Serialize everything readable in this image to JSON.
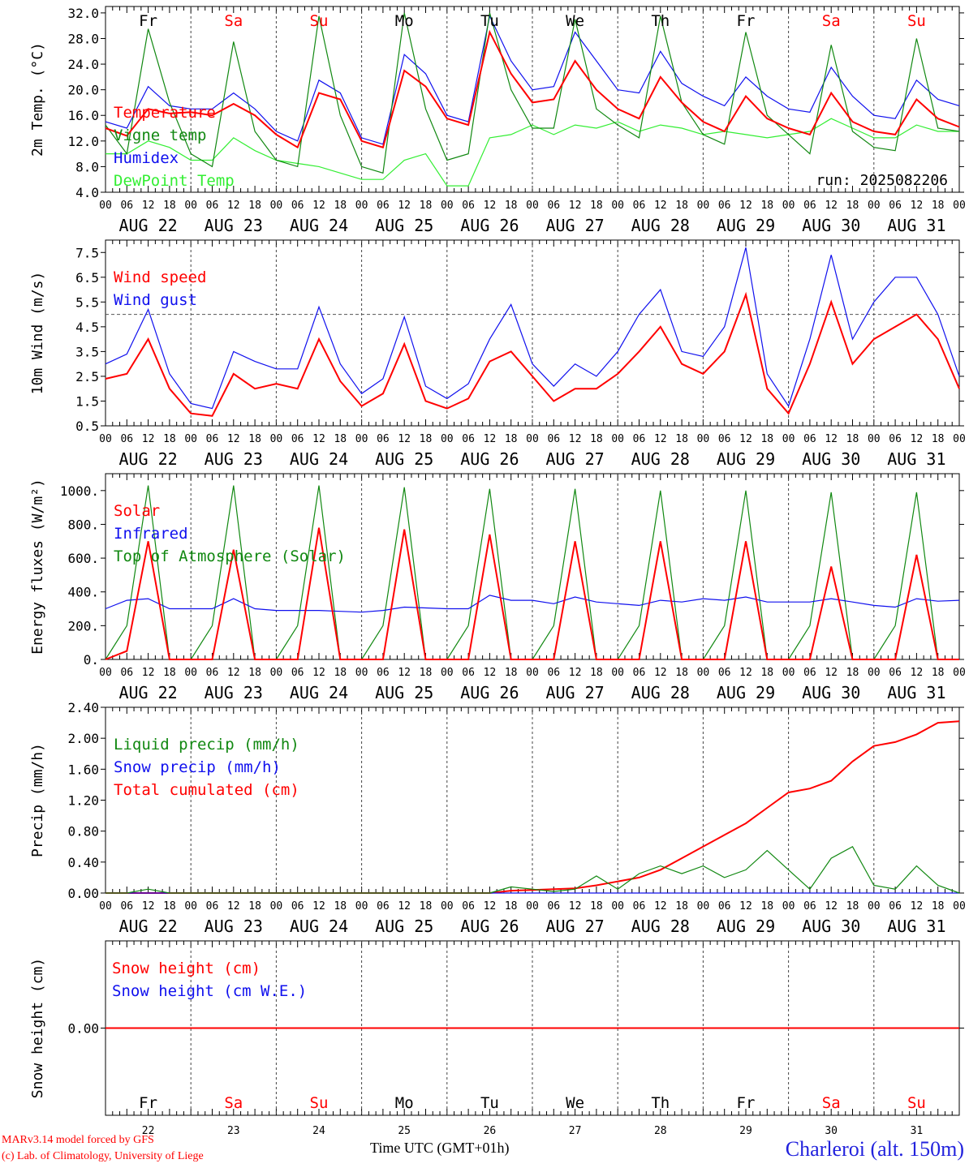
{
  "days": [
    {
      "dow": "Fr",
      "weekend": false,
      "date": "AUG 22",
      "daynum": "22"
    },
    {
      "dow": "Sa",
      "weekend": true,
      "date": "AUG 23",
      "daynum": "23"
    },
    {
      "dow": "Su",
      "weekend": true,
      "date": "AUG 24",
      "daynum": "24"
    },
    {
      "dow": "Mo",
      "weekend": false,
      "date": "AUG 25",
      "daynum": "25"
    },
    {
      "dow": "Tu",
      "weekend": false,
      "date": "AUG 26",
      "daynum": "26"
    },
    {
      "dow": "We",
      "weekend": false,
      "date": "AUG 27",
      "daynum": "27"
    },
    {
      "dow": "Th",
      "weekend": false,
      "date": "AUG 28",
      "daynum": "28"
    },
    {
      "dow": "Fr",
      "weekend": false,
      "date": "AUG 29",
      "daynum": "29"
    },
    {
      "dow": "Sa",
      "weekend": true,
      "date": "AUG 30",
      "daynum": "30"
    },
    {
      "dow": "Su",
      "weekend": true,
      "date": "AUG 31",
      "daynum": "31"
    }
  ],
  "hour_ticks": [
    "00",
    "06",
    "12",
    "18"
  ],
  "colors": {
    "red": "#ff0000",
    "green": "#118811",
    "blue": "#1010ee",
    "lightgreen": "#33ee33",
    "weekend": "#ff0000",
    "weekday": "#000000"
  },
  "footer": {
    "credit_line1": "MARv3.14 model forced by GFS",
    "credit_line2": "(c) Lab. of Climatology, University of Liege",
    "time_label": "Time UTC (GMT+01h)",
    "station": "Charleroi (alt. 150m)"
  },
  "chart_data": [
    {
      "type": "line",
      "ylabel": "2m Temp. (°C)",
      "ylim": [
        4.0,
        33.0
      ],
      "yticks": [
        "4.0",
        "8.0",
        "12.0",
        "16.0",
        "20.0",
        "24.0",
        "28.0",
        "32.0"
      ],
      "ytick_values": [
        4,
        8,
        12,
        16,
        20,
        24,
        28,
        32
      ],
      "annotation": "run: 2025082206",
      "x_hours": [
        0,
        6,
        12,
        18,
        24,
        30,
        36,
        42,
        48,
        54,
        60,
        66,
        72,
        78,
        84,
        90,
        96,
        102,
        108,
        114,
        120,
        126,
        132,
        138,
        144,
        150,
        156,
        162,
        168,
        174,
        180,
        186,
        192,
        198,
        204,
        210,
        216,
        222,
        228,
        234,
        240
      ],
      "series": [
        {
          "name": "Temperature",
          "color": "red",
          "values": [
            14.0,
            12.8,
            17.0,
            16.3,
            16.5,
            16.0,
            17.8,
            16.0,
            13.0,
            11.0,
            19.5,
            18.5,
            12.0,
            11.0,
            23.0,
            20.5,
            15.5,
            14.5,
            29.0,
            22.5,
            18.0,
            18.5,
            24.5,
            20.0,
            17.0,
            15.5,
            22.0,
            18.0,
            15.0,
            13.5,
            19.0,
            15.5,
            14.0,
            13.0,
            19.5,
            15.0,
            13.5,
            13.0,
            18.5,
            15.5,
            14.2
          ]
        },
        {
          "name": "Vigne temp",
          "color": "green",
          "values": [
            14.5,
            10.0,
            29.5,
            18.0,
            10.0,
            8.0,
            27.5,
            13.5,
            9.0,
            8.0,
            31.5,
            16.0,
            8.0,
            7.0,
            32.0,
            17.0,
            9.0,
            10.0,
            32.0,
            20.0,
            14.0,
            14.0,
            31.0,
            17.0,
            14.5,
            12.5,
            31.5,
            18.0,
            13.0,
            11.5,
            29.0,
            16.0,
            13.0,
            10.0,
            27.0,
            13.5,
            11.0,
            10.5,
            28.0,
            14.0,
            13.5
          ]
        },
        {
          "name": "Humidex",
          "color": "blue",
          "values": [
            15.0,
            14.0,
            20.5,
            17.5,
            17.0,
            17.0,
            19.5,
            17.0,
            13.5,
            12.0,
            21.5,
            19.5,
            12.5,
            11.5,
            25.5,
            22.5,
            16.0,
            15.0,
            31.5,
            24.5,
            20.0,
            20.5,
            29.0,
            24.5,
            20.0,
            19.5,
            26.0,
            21.0,
            19.0,
            17.5,
            22.0,
            19.0,
            17.0,
            16.5,
            23.5,
            19.0,
            16.0,
            15.5,
            21.5,
            18.5,
            17.5
          ]
        },
        {
          "name": "DewPoint Temp",
          "color": "lightgreen",
          "values": [
            10.0,
            10.0,
            12.0,
            11.0,
            9.0,
            9.0,
            12.5,
            10.5,
            9.0,
            8.5,
            8.0,
            7.0,
            6.0,
            6.0,
            9.0,
            10.0,
            5.0,
            5.0,
            12.5,
            13.0,
            14.5,
            13.0,
            14.5,
            14.0,
            15.0,
            13.5,
            14.5,
            14.0,
            13.0,
            13.5,
            13.0,
            12.5,
            13.0,
            13.5,
            15.5,
            14.0,
            12.5,
            12.5,
            14.5,
            13.5,
            13.5
          ]
        }
      ]
    },
    {
      "type": "line",
      "ylabel": "10m Wind (m/s)",
      "ylim": [
        0.5,
        8.0
      ],
      "yticks": [
        "0.5",
        "1.5",
        "2.5",
        "3.5",
        "4.5",
        "5.5",
        "6.5",
        "7.5"
      ],
      "ytick_values": [
        0.5,
        1.5,
        2.5,
        3.5,
        4.5,
        5.5,
        6.5,
        7.5
      ],
      "ref_line": 5.0,
      "x_hours": [
        0,
        6,
        12,
        18,
        24,
        30,
        36,
        42,
        48,
        54,
        60,
        66,
        72,
        78,
        84,
        90,
        96,
        102,
        108,
        114,
        120,
        126,
        132,
        138,
        144,
        150,
        156,
        162,
        168,
        174,
        180,
        186,
        192,
        198,
        204,
        210,
        216,
        222,
        228,
        234,
        240
      ],
      "series": [
        {
          "name": "Wind speed",
          "color": "red",
          "values": [
            2.4,
            2.6,
            4.0,
            2.0,
            1.0,
            0.9,
            2.6,
            2.0,
            2.2,
            2.0,
            4.0,
            2.3,
            1.3,
            1.8,
            3.8,
            1.5,
            1.2,
            1.6,
            3.1,
            3.5,
            2.5,
            1.5,
            2.0,
            2.0,
            2.6,
            3.5,
            4.5,
            3.0,
            2.6,
            3.5,
            5.8,
            2.0,
            1.0,
            3.0,
            5.5,
            3.0,
            4.0,
            4.5,
            5.0,
            4.0,
            2.0
          ]
        },
        {
          "name": "Wind gust",
          "color": "blue",
          "values": [
            3.0,
            3.4,
            5.2,
            2.6,
            1.4,
            1.2,
            3.5,
            3.1,
            2.8,
            2.8,
            5.3,
            3.0,
            1.8,
            2.4,
            4.9,
            2.1,
            1.6,
            2.2,
            4.0,
            5.4,
            3.0,
            2.1,
            3.0,
            2.5,
            3.5,
            5.0,
            6.0,
            3.5,
            3.3,
            4.5,
            7.7,
            2.6,
            1.3,
            4.0,
            7.4,
            4.0,
            5.5,
            6.5,
            6.5,
            5.0,
            2.5
          ]
        }
      ]
    },
    {
      "type": "line",
      "ylabel": "Energy fluxes (W/m²)",
      "ylim": [
        0,
        1100
      ],
      "yticks": [
        "0.",
        "200.",
        "400.",
        "600.",
        "800.",
        "1000."
      ],
      "ytick_values": [
        0,
        200,
        400,
        600,
        800,
        1000
      ],
      "x_hours": [
        0,
        6,
        12,
        18,
        24,
        30,
        36,
        42,
        48,
        54,
        60,
        66,
        72,
        78,
        84,
        90,
        96,
        102,
        108,
        114,
        120,
        126,
        132,
        138,
        144,
        150,
        156,
        162,
        168,
        174,
        180,
        186,
        192,
        198,
        204,
        210,
        216,
        222,
        228,
        234,
        240
      ],
      "series": [
        {
          "name": "Solar",
          "color": "red",
          "values": [
            0,
            50,
            700,
            0,
            0,
            0,
            650,
            0,
            0,
            0,
            780,
            0,
            0,
            0,
            770,
            0,
            0,
            0,
            740,
            0,
            0,
            0,
            700,
            0,
            0,
            0,
            700,
            0,
            0,
            0,
            700,
            0,
            0,
            0,
            550,
            0,
            0,
            0,
            620,
            0,
            0
          ]
        },
        {
          "name": "Infrared",
          "color": "blue",
          "values": [
            300,
            350,
            360,
            300,
            300,
            300,
            360,
            300,
            290,
            290,
            290,
            285,
            280,
            290,
            310,
            305,
            300,
            300,
            380,
            350,
            350,
            330,
            370,
            340,
            330,
            320,
            350,
            340,
            360,
            350,
            370,
            340,
            340,
            340,
            360,
            340,
            320,
            310,
            360,
            345,
            350
          ]
        },
        {
          "name": "Top of Atmosphere (Solar)",
          "color": "green",
          "values": [
            0,
            200,
            1030,
            0,
            0,
            200,
            1030,
            0,
            0,
            200,
            1030,
            0,
            0,
            200,
            1020,
            0,
            0,
            200,
            1010,
            0,
            0,
            200,
            1010,
            0,
            0,
            200,
            1000,
            0,
            0,
            200,
            1000,
            0,
            0,
            200,
            990,
            0,
            0,
            200,
            990,
            0,
            0
          ]
        }
      ]
    },
    {
      "type": "line",
      "ylabel": "Precip (mm/h)",
      "ylim": [
        0.0,
        2.4
      ],
      "yticks": [
        "0.00",
        "0.40",
        "0.80",
        "1.20",
        "1.60",
        "2.00",
        "2.40"
      ],
      "ytick_values": [
        0.0,
        0.4,
        0.8,
        1.2,
        1.6,
        2.0,
        2.4
      ],
      "x_hours": [
        0,
        6,
        12,
        18,
        24,
        30,
        36,
        42,
        48,
        54,
        60,
        66,
        72,
        78,
        84,
        90,
        96,
        102,
        108,
        114,
        120,
        126,
        132,
        138,
        144,
        150,
        156,
        162,
        168,
        174,
        180,
        186,
        192,
        198,
        204,
        210,
        216,
        222,
        228,
        234,
        240
      ],
      "series": [
        {
          "name": "Liquid precip (mm/h)",
          "color": "green",
          "values": [
            0,
            0,
            0.05,
            0,
            0,
            0,
            0,
            0,
            0,
            0,
            0,
            0,
            0,
            0,
            0,
            0,
            0,
            0,
            0,
            0.08,
            0.05,
            0.02,
            0.05,
            0.22,
            0.05,
            0.25,
            0.35,
            0.25,
            0.35,
            0.2,
            0.3,
            0.55,
            0.3,
            0.05,
            0.45,
            0.6,
            0.1,
            0.05,
            0.35,
            0.1,
            0
          ]
        },
        {
          "name": "Snow precip (mm/h)",
          "color": "blue",
          "values": [
            0,
            0,
            0,
            0,
            0,
            0,
            0,
            0,
            0,
            0,
            0,
            0,
            0,
            0,
            0,
            0,
            0,
            0,
            0,
            0,
            0,
            0,
            0,
            0,
            0,
            0,
            0,
            0,
            0,
            0,
            0,
            0,
            0,
            0,
            0,
            0,
            0,
            0,
            0,
            0,
            0
          ]
        },
        {
          "name": "Total cumulated (cm)",
          "color": "red",
          "values": [
            0,
            0,
            0,
            0,
            0,
            0,
            0,
            0,
            0,
            0,
            0,
            0,
            0,
            0,
            0,
            0,
            0,
            0,
            0,
            0.03,
            0.04,
            0.05,
            0.06,
            0.1,
            0.15,
            0.2,
            0.3,
            0.45,
            0.6,
            0.75,
            0.9,
            1.1,
            1.3,
            1.35,
            1.45,
            1.7,
            1.9,
            1.95,
            2.05,
            2.2,
            2.22
          ]
        }
      ]
    },
    {
      "type": "line",
      "ylabel": "Snow height (cm)",
      "ylim": [
        -1,
        1
      ],
      "yticks": [
        "0.00"
      ],
      "ytick_values": [
        0
      ],
      "x_hours": [
        0,
        240
      ],
      "series": [
        {
          "name": "Snow height (cm)",
          "color": "red",
          "values": [
            0,
            0
          ]
        },
        {
          "name": "Snow height (cm W.E.)",
          "color": "blue",
          "values": [
            0,
            0
          ]
        }
      ]
    }
  ]
}
